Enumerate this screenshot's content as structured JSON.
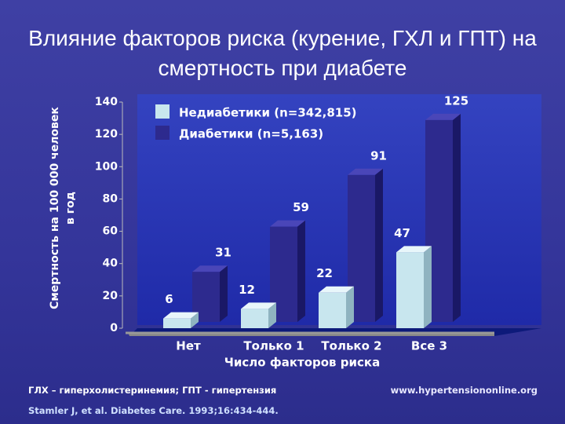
{
  "chart_data": {
    "type": "bar",
    "title": "Влияние факторов риска (курение, ГХЛ и ГПТ) на смертность при диабете",
    "y_label": "Смертность на 100 000 человек в год",
    "x_label": "Число факторов риска",
    "categories": [
      "Нет",
      "Только 1",
      "Только 2",
      "Все 3"
    ],
    "series": [
      {
        "name": "Недиабетики (n=342,815)",
        "color": "#c8e6ee",
        "values": [
          6,
          12,
          22,
          47
        ]
      },
      {
        "name": "Диабетики (n=5,163)",
        "color": "#2d2a8e",
        "values": [
          31,
          59,
          91,
          125
        ]
      }
    ],
    "ylim": [
      0,
      140
    ],
    "yticks": [
      0,
      20,
      40,
      60,
      80,
      100,
      120,
      140
    ],
    "footnote": "ГЛХ – гиперхолистеринемия; ГПТ - гипертензия",
    "source": "Stamler J, et al. Diabetes Care. 1993;16:434-444.",
    "website": "www.hypertensiononline.org"
  }
}
